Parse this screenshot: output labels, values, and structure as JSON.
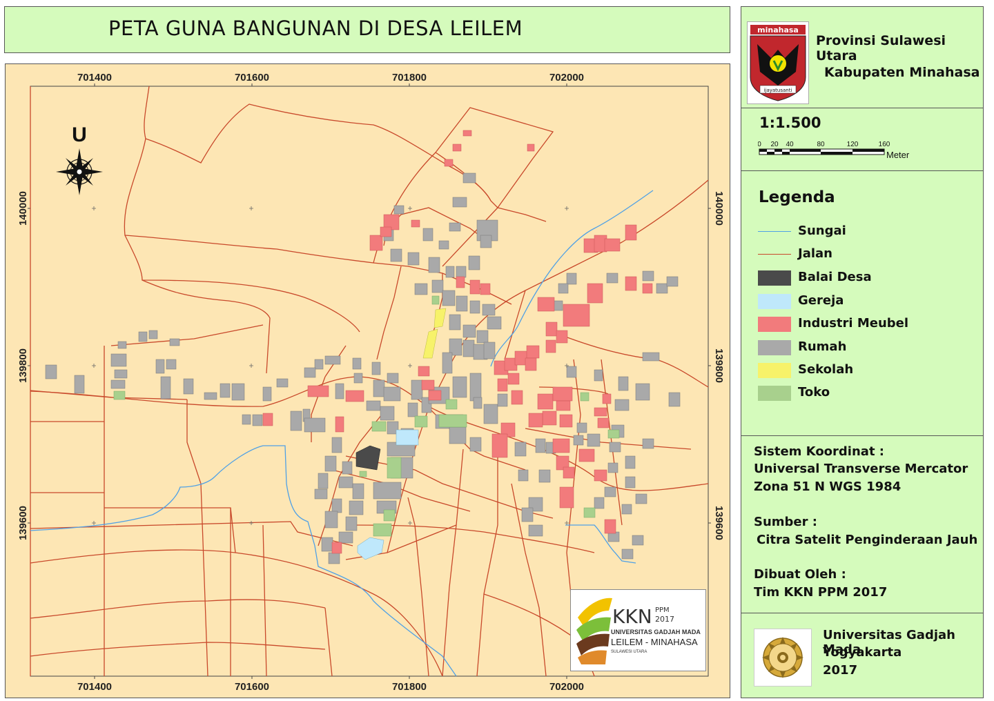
{
  "title": "PETA GUNA BANGUNAN DI DESA LEILEM",
  "header": {
    "province": "Provinsi Sulawesi Utara",
    "regency": "Kabupaten Minahasa",
    "emblem_top_text": "minahasa",
    "emblem_motto": "ijayatusanti"
  },
  "scale": {
    "ratio": "1:1.500",
    "ticks": [
      "0",
      "20",
      "40",
      "80",
      "120",
      "160"
    ],
    "unit": "Meter"
  },
  "legend": {
    "title": "Legenda",
    "items": [
      {
        "label": "Sungai",
        "kind": "line",
        "color": "#4ea0e6"
      },
      {
        "label": "Jalan",
        "kind": "line",
        "color": "#c8482a"
      },
      {
        "label": "Balai Desa",
        "kind": "fill",
        "color": "#4a4a4a"
      },
      {
        "label": "Gereja",
        "kind": "fill",
        "color": "#bfe8fb"
      },
      {
        "label": "Industri Meubel",
        "kind": "fill",
        "color": "#f27b7c"
      },
      {
        "label": "Rumah",
        "kind": "fill",
        "color": "#a9a9a9"
      },
      {
        "label": "Sekolah",
        "kind": "fill",
        "color": "#f7f26a"
      },
      {
        "label": "Toko",
        "kind": "fill",
        "color": "#a8d08d"
      }
    ]
  },
  "info": {
    "coord_label": "Sistem Koordinat :",
    "coord_line1": "Universal Transverse Mercator",
    "coord_line2": "Zona 51 N WGS 1984",
    "source_label": "Sumber :",
    "source_value": "Citra Satelit Penginderaan Jauh",
    "author_label": "Dibuat Oleh :",
    "author_value": "Tim KKN PPM 2017"
  },
  "footer": {
    "university": "Universitas Gadjah Mada",
    "city": "Yogyakarta",
    "year": "2017"
  },
  "map": {
    "north_label": "U",
    "x_ticks": [
      "701400",
      "701600",
      "701800",
      "702000"
    ],
    "y_ticks": [
      "140000",
      "139800",
      "139600"
    ],
    "colors": {
      "background": "#fde6b4",
      "road": "#c8482a",
      "river": "#4ea0e6"
    }
  },
  "kkn_logo": {
    "kkn": "KKN",
    "ppm": "PPM",
    "year": "2017",
    "university": "UNIVERSITAS GADJAH MADA",
    "place": "LEILEM - MINAHASA",
    "region": "SULAWESI UTARA"
  }
}
